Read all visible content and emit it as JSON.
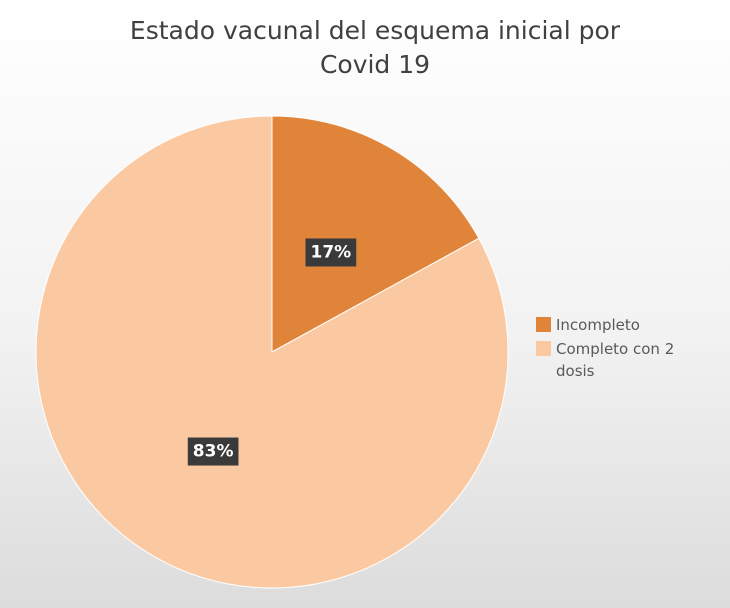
{
  "chart_data": {
    "type": "pie",
    "title": "Estado vacunal del esquema inicial por Covid 19",
    "categories": [
      "Incompleto",
      "Completo con 2 dosis"
    ],
    "values": [
      17,
      83
    ],
    "value_labels": [
      "17%",
      "83%"
    ],
    "colors": [
      "#e0843a",
      "#fac9a1"
    ],
    "legend": "right"
  }
}
